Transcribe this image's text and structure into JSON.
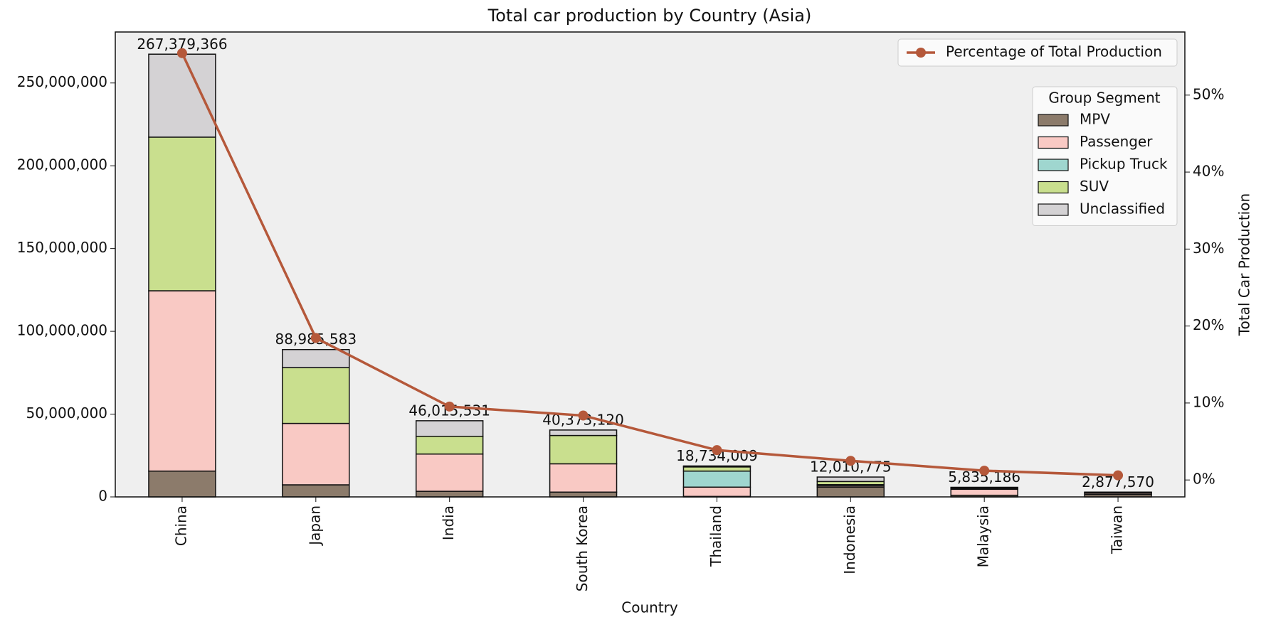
{
  "chart_data": {
    "type": "bar",
    "stacked": true,
    "title": "Total car production by Country (Asia)",
    "x_label": "Country",
    "y2_label": "Total Car Production",
    "legend_title": "Group Segment",
    "categories": [
      "China",
      "Japan",
      "India",
      "South Korea",
      "Thailand",
      "Indonesia",
      "Malaysia",
      "Taiwan"
    ],
    "series": [
      {
        "name": "MPV",
        "color": "#8c7b6b",
        "values": [
          15600000,
          7300000,
          3400000,
          2900000,
          300000,
          5900000,
          1000000,
          1500000
        ]
      },
      {
        "name": "Passenger",
        "color": "#f9c9c4",
        "values": [
          108900000,
          37100000,
          22500000,
          17100000,
          5600000,
          800000,
          3600000,
          800000
        ]
      },
      {
        "name": "Pickup Truck",
        "color": "#9fd6cf",
        "values": [
          0,
          0,
          0,
          0,
          9700000,
          700000,
          300000,
          200000
        ]
      },
      {
        "name": "SUV",
        "color": "#c9df8e",
        "values": [
          92800000,
          33700000,
          10700000,
          17100000,
          2500000,
          1900000,
          500000,
          300000
        ]
      },
      {
        "name": "Unclassified",
        "color": "#d4d2d4",
        "values": [
          50100000,
          10900000,
          9400000,
          3300000,
          600000,
          2700000,
          400000,
          100000
        ]
      },
      {
        "name": "Percentage of Total Production",
        "type": "line",
        "axis": "y2",
        "color": "#b5583a",
        "values": [
          55.45,
          18.45,
          9.54,
          8.37,
          3.88,
          2.49,
          1.21,
          0.6
        ]
      }
    ],
    "totals": [
      267379366,
      88985583,
      46015531,
      40373120,
      18734009,
      12010775,
      5835186,
      2877570
    ],
    "total_labels": [
      "267,379,366",
      "88,985,583",
      "46,015,531",
      "40,373,120",
      "18,734,009",
      "12,010,775",
      "5,835,186",
      "2,877,570"
    ],
    "ylim": [
      0,
      280800000
    ],
    "yticks": [
      0,
      {
        "value": 50000000,
        "label": "50,000,000"
      },
      {
        "value": 100000000,
        "label": "100,000,000"
      },
      {
        "value": 150000000,
        "label": "150,000,000"
      },
      {
        "value": 200000000,
        "label": "200,000,000"
      },
      {
        "value": 250000000,
        "label": "250,000,000"
      }
    ],
    "y2lim": [
      -2.2,
      58.2
    ],
    "y2ticks": [
      {
        "value": 0,
        "label": "0%"
      },
      {
        "value": 10,
        "label": "10%"
      },
      {
        "value": 20,
        "label": "20%"
      },
      {
        "value": 30,
        "label": "30%"
      },
      {
        "value": 40,
        "label": "40%"
      },
      {
        "value": 50,
        "label": "50%"
      }
    ]
  }
}
